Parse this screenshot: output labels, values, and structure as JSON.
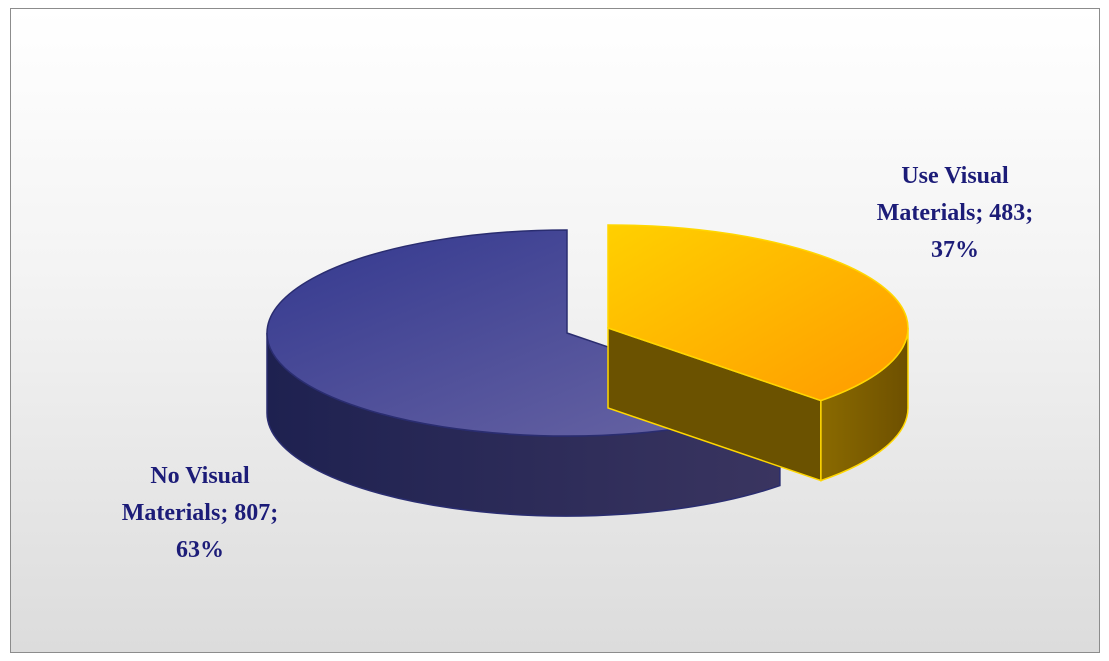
{
  "chart_data": {
    "type": "pie3d",
    "categories": [
      "Use Visual Materials",
      "No Visual Materials"
    ],
    "values": [
      483,
      807
    ],
    "value_labels": [
      "Use Visual Materials; 483; 37%",
      "No Visual Materials; 807; 63%"
    ],
    "colors": [
      "#ffc000",
      "#3c3f98"
    ]
  }
}
